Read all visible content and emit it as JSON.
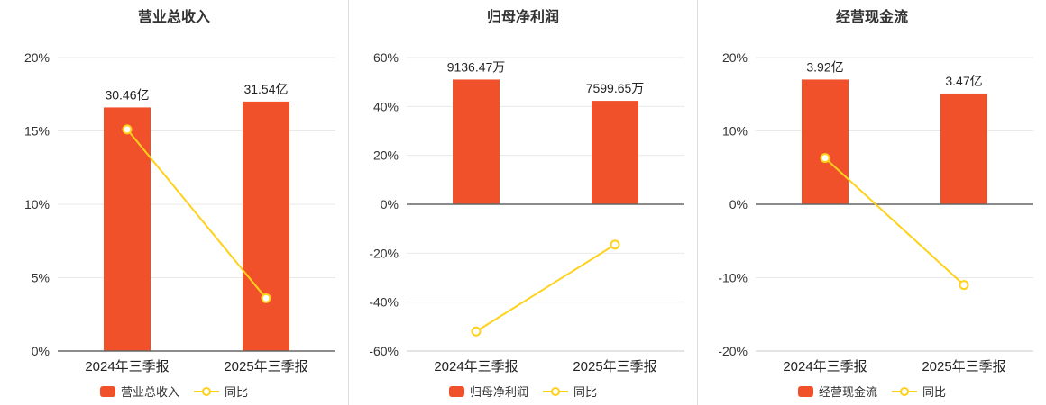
{
  "colors": {
    "bar": "#f0512b",
    "line": "#ffd11a",
    "grid": "#e9e9e9",
    "axis": "#c8c8c8",
    "zero_line": "#666666",
    "text": "#333333"
  },
  "chart_data": [
    {
      "type": "bar",
      "title": "营业总收入",
      "categories": [
        "2024年三季报",
        "2025年三季报"
      ],
      "bar_series": {
        "name": "营业总收入",
        "labels": [
          "30.46亿",
          "31.54亿"
        ],
        "display_pct": [
          16.6,
          17.0
        ]
      },
      "line_series": {
        "name": "同比",
        "values_pct": [
          15.1,
          3.6
        ]
      },
      "ylim": [
        0,
        20
      ],
      "yticks": [
        0,
        5,
        10,
        15,
        20
      ],
      "ytick_suffix": "%"
    },
    {
      "type": "bar",
      "title": "归母净利润",
      "categories": [
        "2024年三季报",
        "2025年三季报"
      ],
      "bar_series": {
        "name": "归母净利润",
        "labels": [
          "9136.47万",
          "7599.65万"
        ],
        "display_pct": [
          51.0,
          42.3
        ]
      },
      "line_series": {
        "name": "同比",
        "values_pct": [
          -52.0,
          -16.5
        ]
      },
      "ylim": [
        -60,
        60
      ],
      "yticks": [
        -60,
        -40,
        -20,
        0,
        20,
        40,
        60
      ],
      "ytick_suffix": "%"
    },
    {
      "type": "bar",
      "title": "经营现金流",
      "categories": [
        "2024年三季报",
        "2025年三季报"
      ],
      "bar_series": {
        "name": "经营现金流",
        "labels": [
          "3.92亿",
          "3.47亿"
        ],
        "display_pct": [
          17.0,
          15.1
        ]
      },
      "line_series": {
        "name": "同比",
        "values_pct": [
          6.3,
          -11.0
        ]
      },
      "ylim": [
        -20,
        20
      ],
      "yticks": [
        -20,
        -10,
        0,
        10,
        20
      ],
      "ytick_suffix": "%"
    }
  ]
}
